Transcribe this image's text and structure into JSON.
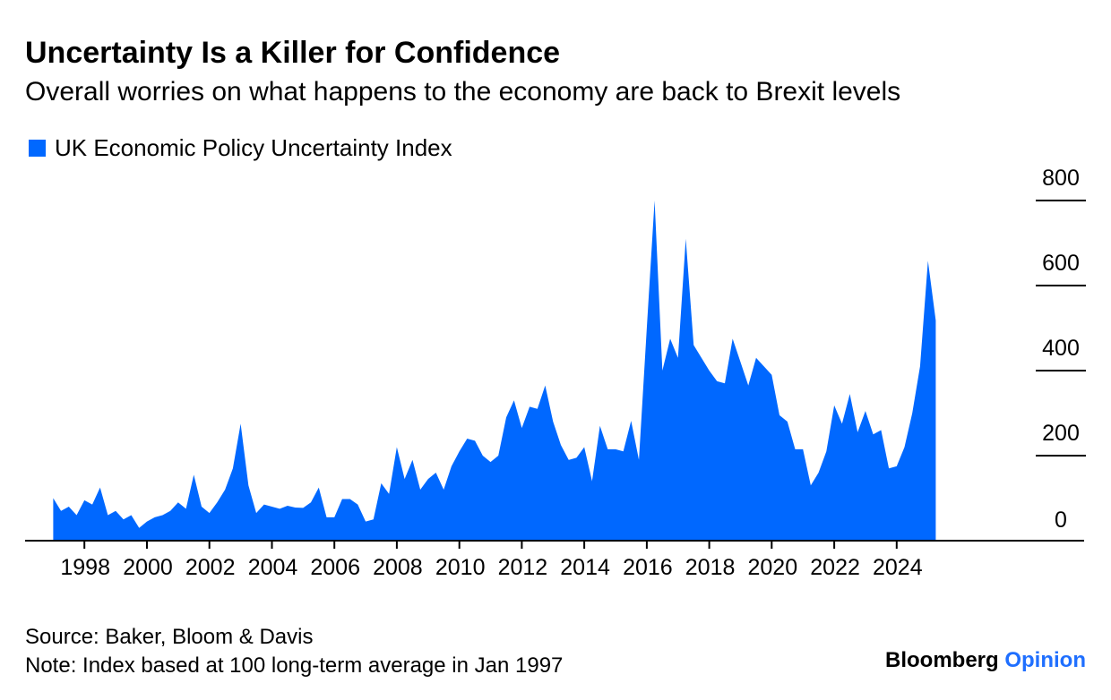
{
  "header": {
    "title": "Uncertainty Is a Killer for Confidence",
    "subtitle": "Overall worries on what happens to the economy are back to Brexit levels"
  },
  "legend": {
    "label": "UK Economic Policy Uncertainty Index",
    "color": "#0068ff"
  },
  "chart_data": {
    "type": "area",
    "series": [
      {
        "name": "UK Economic Policy Uncertainty Index",
        "color": "#0068ff",
        "points": [
          [
            1997.0,
            100
          ],
          [
            1997.25,
            70
          ],
          [
            1997.5,
            80
          ],
          [
            1997.75,
            60
          ],
          [
            1998.0,
            95
          ],
          [
            1998.25,
            85
          ],
          [
            1998.5,
            125
          ],
          [
            1998.75,
            60
          ],
          [
            1999.0,
            70
          ],
          [
            1999.25,
            50
          ],
          [
            1999.5,
            60
          ],
          [
            1999.75,
            30
          ],
          [
            2000.0,
            45
          ],
          [
            2000.25,
            55
          ],
          [
            2000.5,
            60
          ],
          [
            2000.75,
            70
          ],
          [
            2001.0,
            90
          ],
          [
            2001.25,
            75
          ],
          [
            2001.5,
            155
          ],
          [
            2001.75,
            80
          ],
          [
            2002.0,
            65
          ],
          [
            2002.25,
            90
          ],
          [
            2002.5,
            120
          ],
          [
            2002.75,
            170
          ],
          [
            2003.0,
            275
          ],
          [
            2003.25,
            130
          ],
          [
            2003.5,
            65
          ],
          [
            2003.75,
            85
          ],
          [
            2004.0,
            80
          ],
          [
            2004.25,
            75
          ],
          [
            2004.5,
            82
          ],
          [
            2004.75,
            78
          ],
          [
            2005.0,
            77
          ],
          [
            2005.25,
            90
          ],
          [
            2005.5,
            125
          ],
          [
            2005.75,
            55
          ],
          [
            2006.0,
            55
          ],
          [
            2006.25,
            98
          ],
          [
            2006.5,
            98
          ],
          [
            2006.75,
            85
          ],
          [
            2007.0,
            45
          ],
          [
            2007.25,
            50
          ],
          [
            2007.5,
            135
          ],
          [
            2007.75,
            110
          ],
          [
            2008.0,
            220
          ],
          [
            2008.25,
            145
          ],
          [
            2008.5,
            190
          ],
          [
            2008.75,
            120
          ],
          [
            2009.0,
            145
          ],
          [
            2009.25,
            160
          ],
          [
            2009.5,
            120
          ],
          [
            2009.75,
            175
          ],
          [
            2010.0,
            210
          ],
          [
            2010.25,
            240
          ],
          [
            2010.5,
            235
          ],
          [
            2010.75,
            200
          ],
          [
            2011.0,
            185
          ],
          [
            2011.25,
            200
          ],
          [
            2011.5,
            290
          ],
          [
            2011.75,
            330
          ],
          [
            2012.0,
            265
          ],
          [
            2012.25,
            315
          ],
          [
            2012.5,
            310
          ],
          [
            2012.75,
            365
          ],
          [
            2013.0,
            280
          ],
          [
            2013.25,
            225
          ],
          [
            2013.5,
            190
          ],
          [
            2013.75,
            195
          ],
          [
            2014.0,
            220
          ],
          [
            2014.25,
            140
          ],
          [
            2014.5,
            270
          ],
          [
            2014.75,
            215
          ],
          [
            2015.0,
            215
          ],
          [
            2015.25,
            210
          ],
          [
            2015.5,
            282
          ],
          [
            2015.75,
            190
          ],
          [
            2016.0,
            500
          ],
          [
            2016.25,
            800
          ],
          [
            2016.5,
            400
          ],
          [
            2016.75,
            475
          ],
          [
            2017.0,
            430
          ],
          [
            2017.25,
            710
          ],
          [
            2017.5,
            460
          ],
          [
            2017.75,
            430
          ],
          [
            2018.0,
            400
          ],
          [
            2018.25,
            375
          ],
          [
            2018.5,
            370
          ],
          [
            2018.75,
            475
          ],
          [
            2019.0,
            420
          ],
          [
            2019.25,
            365
          ],
          [
            2019.5,
            430
          ],
          [
            2019.75,
            410
          ],
          [
            2020.0,
            390
          ],
          [
            2020.25,
            295
          ],
          [
            2020.5,
            280
          ],
          [
            2020.75,
            215
          ],
          [
            2021.0,
            215
          ],
          [
            2021.25,
            130
          ],
          [
            2021.5,
            160
          ],
          [
            2021.75,
            210
          ],
          [
            2022.0,
            318
          ],
          [
            2022.25,
            275
          ],
          [
            2022.5,
            345
          ],
          [
            2022.75,
            255
          ],
          [
            2023.0,
            305
          ],
          [
            2023.25,
            250
          ],
          [
            2023.5,
            260
          ],
          [
            2023.75,
            170
          ],
          [
            2024.0,
            175
          ],
          [
            2024.25,
            220
          ],
          [
            2024.5,
            300
          ],
          [
            2024.75,
            410
          ],
          [
            2025.0,
            658
          ],
          [
            2025.25,
            518
          ]
        ]
      }
    ],
    "x_ticks": [
      "1998",
      "2000",
      "2002",
      "2004",
      "2006",
      "2008",
      "2010",
      "2012",
      "2014",
      "2016",
      "2018",
      "2020",
      "2022",
      "2024"
    ],
    "y_ticks": [
      "0",
      "200",
      "400",
      "600",
      "800"
    ],
    "xlim": [
      1996.1,
      2030.0
    ],
    "ylim": [
      0,
      800
    ],
    "y_axis_position": "right",
    "grid": false
  },
  "footer": {
    "source": "Source: Baker, Bloom & Davis",
    "note": "Note: Index based at 100 long-term average in Jan 1997",
    "brand_name": "Bloomberg",
    "brand_accent": "Opinion"
  }
}
